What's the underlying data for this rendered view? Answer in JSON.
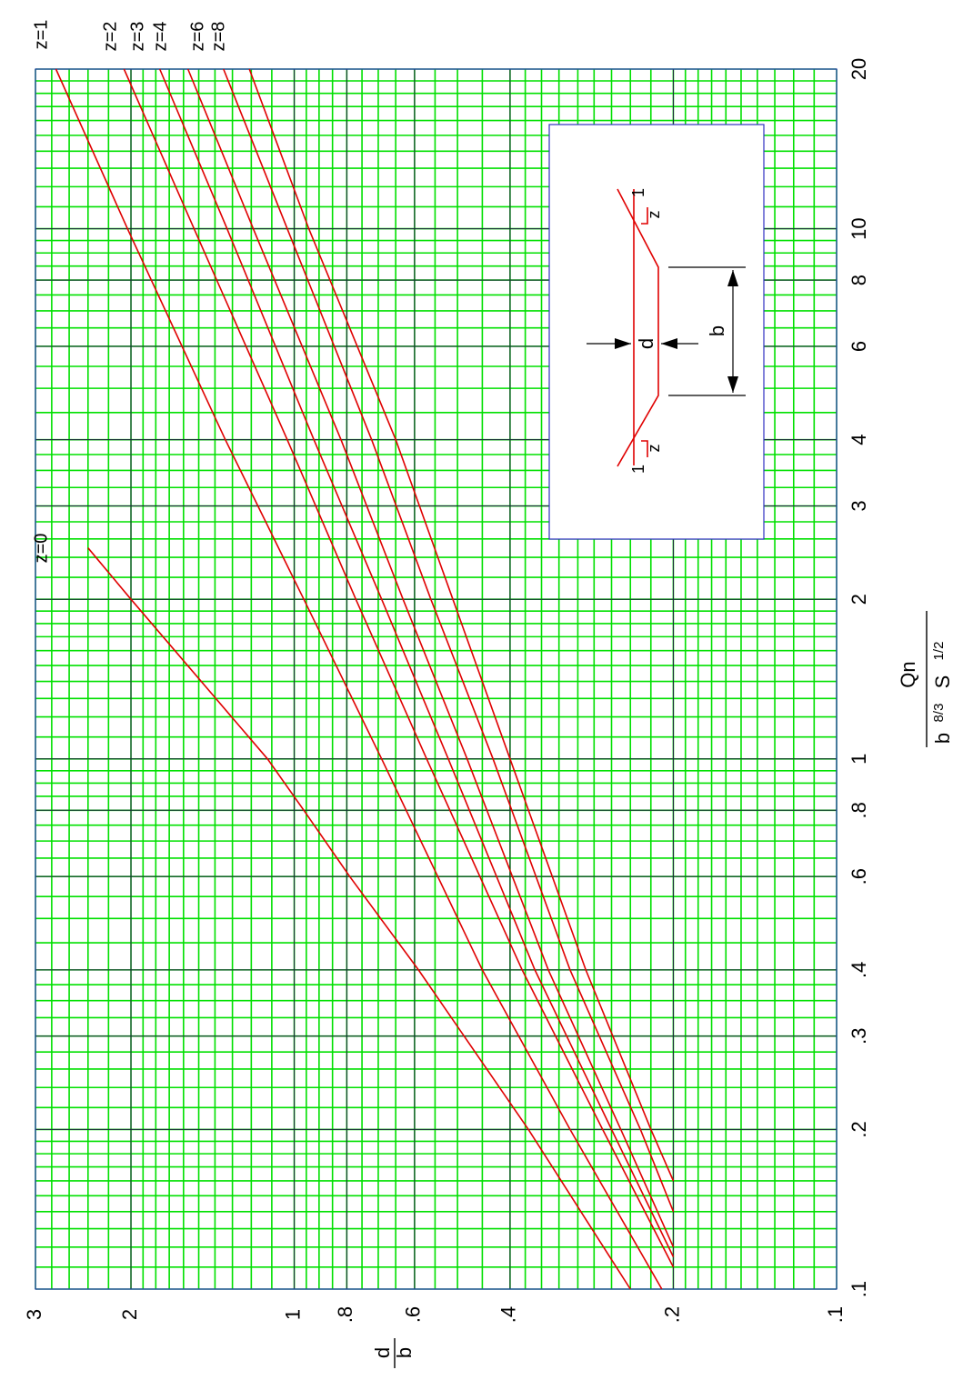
{
  "chart_data": {
    "type": "line",
    "orientation": "rotated-90-ccw",
    "x_axis": {
      "label_numerator": "Qn",
      "label_denominator": "b",
      "label_exp1": "8/3",
      "label_s": "S",
      "label_exp2": "1/2",
      "scale": "log",
      "range": [
        0.1,
        20
      ],
      "tick_values": [
        0.1,
        0.2,
        0.3,
        0.4,
        0.6,
        0.8,
        1,
        2,
        3,
        4,
        6,
        8,
        10,
        20
      ],
      "tick_labels": [
        ".1",
        ".2",
        ".3",
        ".4",
        ".6",
        ".8",
        "1",
        "2",
        "3",
        "4",
        "6",
        "8",
        "10",
        "20"
      ]
    },
    "y_axis": {
      "label_numerator": "d",
      "label_denominator": "b",
      "scale": "log",
      "range": [
        0.1,
        3
      ],
      "tick_values": [
        0.1,
        0.2,
        0.4,
        0.6,
        0.8,
        1,
        2,
        3
      ],
      "tick_labels": [
        ".1",
        ".2",
        ".4",
        ".6",
        ".8",
        "1",
        "2",
        "3"
      ]
    },
    "grid": true,
    "series": [
      {
        "name": "z=0",
        "x": [
          0.1,
          0.2,
          0.4,
          0.6,
          0.8,
          1,
          2,
          2.5
        ],
        "y": [
          0.24,
          0.37,
          0.59,
          0.79,
          0.96,
          1.12,
          2.0,
          2.4
        ]
      },
      {
        "name": "z=1",
        "x": [
          0.1,
          0.2,
          0.4,
          1,
          2,
          4,
          10,
          20
        ],
        "y": [
          0.21,
          0.31,
          0.45,
          0.69,
          0.96,
          1.34,
          2.03,
          2.75
        ]
      },
      {
        "name": "z=2",
        "x": [
          0.11,
          0.2,
          0.4,
          1,
          2,
          4,
          10,
          20
        ],
        "y": [
          0.2,
          0.27,
          0.38,
          0.57,
          0.77,
          1.03,
          1.53,
          2.06
        ]
      },
      {
        "name": "z=3",
        "x": [
          0.115,
          0.2,
          0.4,
          1,
          2,
          4,
          10,
          20
        ],
        "y": [
          0.2,
          0.26,
          0.36,
          0.52,
          0.69,
          0.92,
          1.33,
          1.77
        ]
      },
      {
        "name": "z=4",
        "x": [
          0.12,
          0.2,
          0.4,
          1,
          2,
          4,
          10,
          20
        ],
        "y": [
          0.2,
          0.25,
          0.34,
          0.48,
          0.63,
          0.82,
          1.19,
          1.57
        ]
      },
      {
        "name": "z=6",
        "x": [
          0.14,
          0.2,
          0.4,
          1,
          2,
          4,
          10,
          20
        ],
        "y": [
          0.2,
          0.23,
          0.31,
          0.43,
          0.56,
          0.72,
          1.03,
          1.35
        ]
      },
      {
        "name": "z=8",
        "x": [
          0.16,
          0.2,
          0.4,
          1,
          2,
          4,
          10,
          20
        ],
        "y": [
          0.2,
          0.22,
          0.29,
          0.4,
          0.51,
          0.65,
          0.94,
          1.21
        ]
      }
    ],
    "curve_labels": [
      "z=0",
      "z=1",
      "z=2",
      "z=3",
      "z=4",
      "z=6",
      "z=8"
    ],
    "inset": {
      "label_d": "d",
      "label_b": "b",
      "slope_z": "z",
      "slope_1": "1"
    }
  }
}
